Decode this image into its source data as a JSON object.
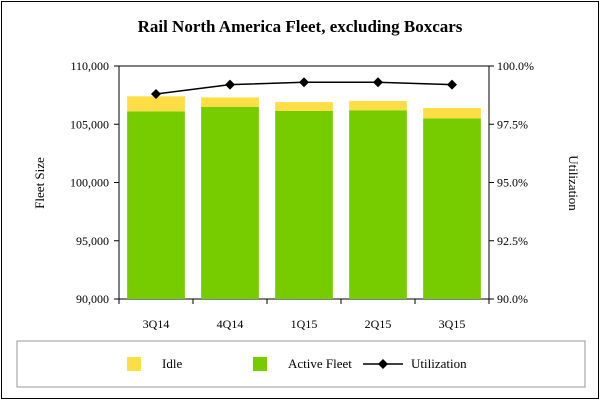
{
  "chart_data": {
    "type": "bar",
    "title": "Rail North America Fleet, excluding Boxcars",
    "categories": [
      "3Q14",
      "4Q14",
      "1Q15",
      "2Q15",
      "3Q15"
    ],
    "series": [
      {
        "name": "Active Fleet",
        "kind": "bar",
        "axis": "left",
        "color": "#77cc00",
        "values": [
          106100,
          106500,
          106150,
          106200,
          105500
        ]
      },
      {
        "name": "Idle",
        "kind": "bar-stacked",
        "axis": "left",
        "color": "#ffdd44",
        "values": [
          1300,
          800,
          750,
          800,
          900
        ]
      },
      {
        "name": "Utilization",
        "kind": "line",
        "axis": "right",
        "color": "#000000",
        "marker": "diamond",
        "values": [
          98.8,
          99.2,
          99.3,
          99.3,
          99.2
        ]
      }
    ],
    "ylabel": "Fleet Size",
    "y2label": "Utilization",
    "ylim": [
      90000,
      110000
    ],
    "y2lim": [
      90.0,
      100.0
    ],
    "yticks": [
      "90,000",
      "95,000",
      "100,000",
      "105,000",
      "110,000"
    ],
    "y2ticks": [
      "90.0%",
      "92.5%",
      "95.0%",
      "97.5%",
      "100.0%"
    ],
    "legend_labels": [
      "Idle",
      "Active Fleet",
      "Utilization"
    ],
    "legend_position": "bottom",
    "grid": false
  }
}
